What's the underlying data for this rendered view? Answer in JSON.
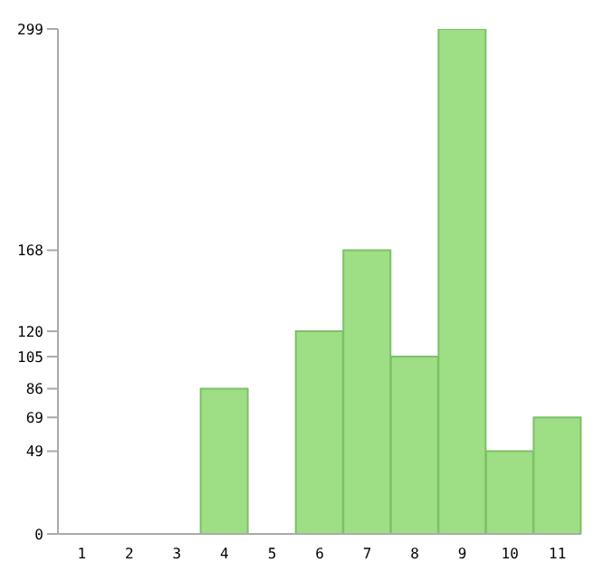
{
  "chart_data": {
    "type": "bar",
    "categories": [
      "1",
      "2",
      "3",
      "4",
      "5",
      "6",
      "7",
      "8",
      "9",
      "10",
      "11"
    ],
    "values": [
      0,
      0,
      0,
      86,
      0,
      120,
      168,
      105,
      299,
      49,
      69
    ],
    "color": "#9ede84",
    "ylim": [
      0,
      299
    ],
    "yticks": [
      0,
      49,
      69,
      86,
      105,
      120,
      168,
      299
    ]
  }
}
